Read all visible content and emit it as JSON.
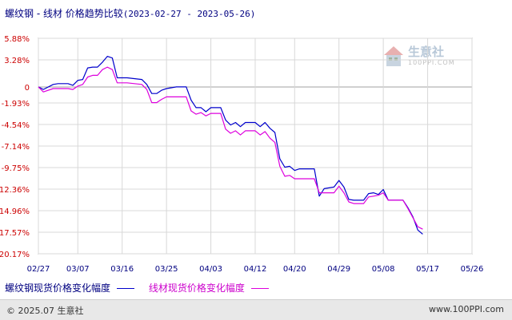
{
  "title": "螺纹钢 - 线材 价格趋势比较",
  "date_range": "(2023-02-27 - 2023-05-26)",
  "watermark": {
    "text": "生意社",
    "sub": "100PPI.COM"
  },
  "footer": {
    "copyright": "© 2025.07 生意社",
    "site": "www.100PPI.com"
  },
  "colors": {
    "series1": "#0000cc",
    "series2": "#dd00dd",
    "axis_label": "#cc0000",
    "grid": "#d8d8d8"
  },
  "chart_data": {
    "type": "line",
    "ylim": [
      -20.17,
      5.88
    ],
    "yticks": [
      "5.88%",
      "3.28%",
      "0",
      "-1.93%",
      "-4.54%",
      "-7.14%",
      "-9.75%",
      "-12.36%",
      "-14.96%",
      "-17.57%",
      "-20.17%"
    ],
    "ytick_values": [
      5.88,
      3.28,
      0,
      -1.93,
      -4.54,
      -7.14,
      -9.75,
      -12.36,
      -14.96,
      -17.57,
      -20.17
    ],
    "xticks": [
      "02/27",
      "03/07",
      "03/16",
      "03/25",
      "04/03",
      "04/12",
      "04/20",
      "04/29",
      "05/08",
      "05/17",
      "05/26"
    ],
    "x_range_days": [
      0,
      88
    ],
    "xtick_days": [
      0,
      8,
      17,
      26,
      35,
      44,
      52,
      61,
      70,
      79,
      88
    ],
    "series": [
      {
        "name": "螺纹钢现货价格变化幅度",
        "points": [
          [
            0,
            0
          ],
          [
            1,
            -0.3
          ],
          [
            3,
            0.3
          ],
          [
            4,
            0.4
          ],
          [
            6,
            0.4
          ],
          [
            7,
            0.2
          ],
          [
            8,
            0.8
          ],
          [
            9,
            0.9
          ],
          [
            10,
            2.3
          ],
          [
            11,
            2.4
          ],
          [
            12,
            2.4
          ],
          [
            13,
            3.0
          ],
          [
            14,
            3.7
          ],
          [
            15,
            3.5
          ],
          [
            16,
            1.1
          ],
          [
            18,
            1.1
          ],
          [
            21,
            0.9
          ],
          [
            22,
            0.3
          ],
          [
            23,
            -0.8
          ],
          [
            24,
            -0.8
          ],
          [
            25,
            -0.4
          ],
          [
            26,
            -0.2
          ],
          [
            28,
            0.0
          ],
          [
            30,
            0.0
          ],
          [
            31,
            -1.6
          ],
          [
            32,
            -2.5
          ],
          [
            33,
            -2.5
          ],
          [
            34,
            -3.0
          ],
          [
            35,
            -2.5
          ],
          [
            37,
            -2.5
          ],
          [
            38,
            -4.0
          ],
          [
            39,
            -4.6
          ],
          [
            40,
            -4.3
          ],
          [
            41,
            -4.8
          ],
          [
            42,
            -4.3
          ],
          [
            44,
            -4.3
          ],
          [
            45,
            -4.8
          ],
          [
            46,
            -4.3
          ],
          [
            47,
            -5.0
          ],
          [
            48,
            -5.5
          ],
          [
            49,
            -8.7
          ],
          [
            50,
            -9.7
          ],
          [
            51,
            -9.6
          ],
          [
            52,
            -10.1
          ],
          [
            53,
            -9.9
          ],
          [
            56,
            -9.9
          ],
          [
            57,
            -13.2
          ],
          [
            58,
            -12.3
          ],
          [
            60,
            -12.1
          ],
          [
            61,
            -11.3
          ],
          [
            62,
            -12.1
          ],
          [
            63,
            -13.6
          ],
          [
            64,
            -13.7
          ],
          [
            66,
            -13.7
          ],
          [
            67,
            -12.9
          ],
          [
            68,
            -12.8
          ],
          [
            69,
            -13.0
          ],
          [
            70,
            -12.4
          ],
          [
            71,
            -13.7
          ],
          [
            74,
            -13.7
          ],
          [
            75,
            -14.6
          ],
          [
            76,
            -15.7
          ],
          [
            77,
            -17.3
          ],
          [
            78,
            -17.8
          ]
        ]
      },
      {
        "name": "线材现货价格变化幅度",
        "points": [
          [
            0,
            0
          ],
          [
            1,
            -0.6
          ],
          [
            3,
            -0.2
          ],
          [
            4,
            -0.2
          ],
          [
            6,
            -0.2
          ],
          [
            7,
            -0.3
          ],
          [
            8,
            0.1
          ],
          [
            9,
            0.3
          ],
          [
            10,
            1.2
          ],
          [
            11,
            1.4
          ],
          [
            12,
            1.4
          ],
          [
            13,
            2.1
          ],
          [
            14,
            2.4
          ],
          [
            15,
            2.1
          ],
          [
            16,
            0.5
          ],
          [
            18,
            0.5
          ],
          [
            21,
            0.3
          ],
          [
            22,
            -0.3
          ],
          [
            23,
            -1.9
          ],
          [
            24,
            -1.9
          ],
          [
            25,
            -1.5
          ],
          [
            26,
            -1.2
          ],
          [
            28,
            -1.2
          ],
          [
            30,
            -1.2
          ],
          [
            31,
            -2.9
          ],
          [
            32,
            -3.3
          ],
          [
            33,
            -3.1
          ],
          [
            34,
            -3.5
          ],
          [
            35,
            -3.2
          ],
          [
            37,
            -3.2
          ],
          [
            38,
            -5.1
          ],
          [
            39,
            -5.6
          ],
          [
            40,
            -5.3
          ],
          [
            41,
            -5.8
          ],
          [
            42,
            -5.3
          ],
          [
            44,
            -5.3
          ],
          [
            45,
            -5.8
          ],
          [
            46,
            -5.4
          ],
          [
            47,
            -6.2
          ],
          [
            48,
            -6.7
          ],
          [
            49,
            -9.6
          ],
          [
            50,
            -10.8
          ],
          [
            51,
            -10.7
          ],
          [
            52,
            -11.1
          ],
          [
            53,
            -11.1
          ],
          [
            56,
            -11.1
          ],
          [
            57,
            -12.8
          ],
          [
            58,
            -12.8
          ],
          [
            60,
            -12.8
          ],
          [
            61,
            -12.0
          ],
          [
            62,
            -12.8
          ],
          [
            63,
            -13.9
          ],
          [
            64,
            -14.1
          ],
          [
            66,
            -14.1
          ],
          [
            67,
            -13.3
          ],
          [
            68,
            -13.2
          ],
          [
            69,
            -13.1
          ],
          [
            70,
            -12.8
          ],
          [
            71,
            -13.7
          ],
          [
            74,
            -13.7
          ],
          [
            75,
            -14.7
          ],
          [
            76,
            -15.8
          ],
          [
            77,
            -16.9
          ],
          [
            78,
            -17.2
          ]
        ]
      }
    ],
    "grid": true,
    "legend": "bottom",
    "legend_entries": [
      "螺纹钢现货价格变化幅度",
      "线材现货价格变化幅度"
    ]
  }
}
